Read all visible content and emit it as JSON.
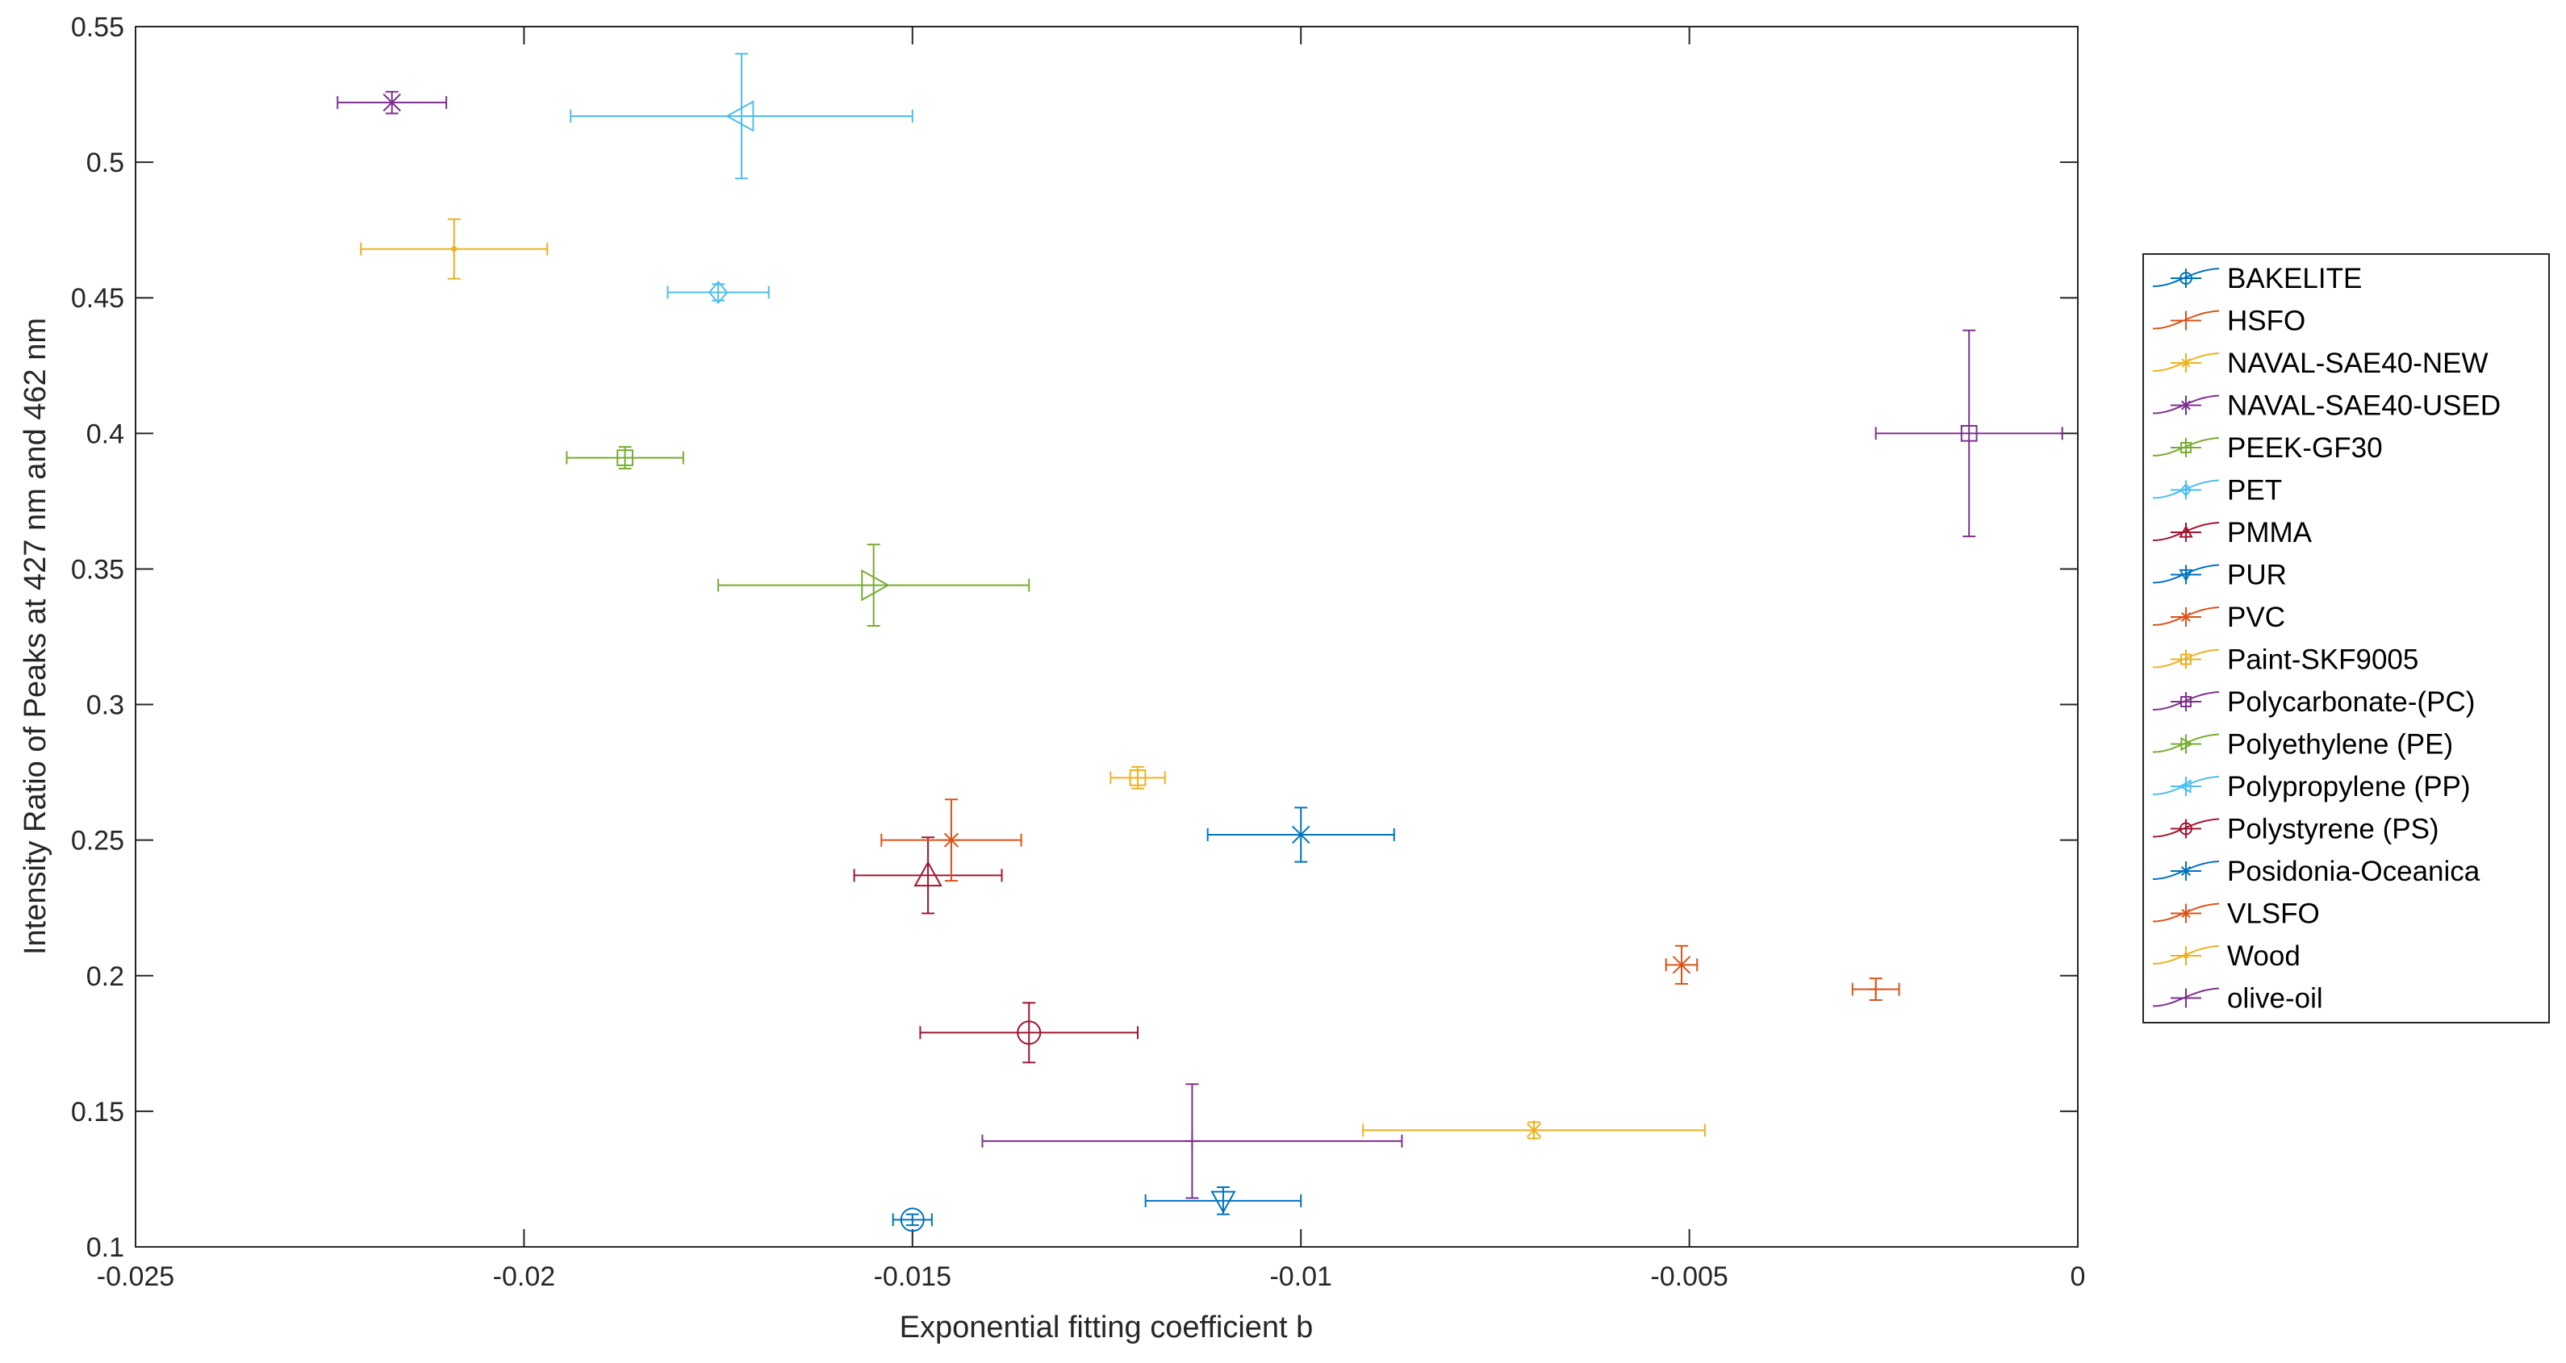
{
  "chart_data": {
    "type": "scatter",
    "title": "",
    "xlabel": "Exponential fitting coefficient b",
    "ylabel": "Intensity Ratio of Peaks at 427 nm and 462 nm",
    "xlim": [
      -0.025,
      0
    ],
    "ylim": [
      0.1,
      0.55
    ],
    "xticks": [
      -0.025,
      -0.02,
      -0.015,
      -0.01,
      -0.005,
      0
    ],
    "xtick_labels": [
      "-0.025",
      "-0.02",
      "-0.015",
      "-0.01",
      "-0.005",
      "0"
    ],
    "yticks": [
      0.1,
      0.15,
      0.2,
      0.25,
      0.3,
      0.35,
      0.4,
      0.45,
      0.5,
      0.55
    ],
    "ytick_labels": [
      "0.1",
      "0.15",
      "0.2",
      "0.25",
      "0.3",
      "0.35",
      "0.4",
      "0.45",
      "0.5",
      "0.55"
    ],
    "grid": false,
    "legend_position": "outside-right",
    "series": [
      {
        "name": "BAKELITE",
        "color": "#0072BD",
        "marker": "circle",
        "x": -0.015,
        "y": 0.11,
        "xerr": 0.00025,
        "yerr": 0.002
      },
      {
        "name": "HSFO",
        "color": "#D95319",
        "marker": "plus",
        "x": -0.0026,
        "y": 0.195,
        "xerr": 0.0003,
        "yerr": 0.004
      },
      {
        "name": "NAVAL-SAE40-NEW",
        "color": "#EDB120",
        "marker": "star",
        "x": -0.007,
        "y": 0.143,
        "xerr": 0.0022,
        "yerr": 0.003
      },
      {
        "name": "NAVAL-SAE40-USED",
        "color": "#7E2F8E",
        "marker": "x",
        "x": -0.0217,
        "y": 0.522,
        "xerr": 0.0007,
        "yerr": 0.004
      },
      {
        "name": "PEEK-GF30",
        "color": "#77AC30",
        "marker": "square",
        "x": -0.0187,
        "y": 0.391,
        "xerr": 0.00075,
        "yerr": 0.004
      },
      {
        "name": "PET",
        "color": "#4DBEEE",
        "marker": "diamond",
        "x": -0.0175,
        "y": 0.452,
        "xerr": 0.00065,
        "yerr": 0.003
      },
      {
        "name": "PMMA",
        "color": "#A2142F",
        "marker": "triangle-up",
        "x": -0.0148,
        "y": 0.237,
        "xerr": 0.00095,
        "yerr": 0.014
      },
      {
        "name": "PUR",
        "color": "#0072BD",
        "marker": "triangle-down",
        "x": -0.011,
        "y": 0.117,
        "xerr": 0.001,
        "yerr": 0.005
      },
      {
        "name": "PVC",
        "color": "#D95319",
        "marker": "x",
        "x": -0.0051,
        "y": 0.204,
        "xerr": 0.0002,
        "yerr": 0.007
      },
      {
        "name": "Paint-SKF9005",
        "color": "#EDB120",
        "marker": "square",
        "x": -0.0121,
        "y": 0.273,
        "xerr": 0.00035,
        "yerr": 0.004
      },
      {
        "name": "Polycarbonate-(PC)",
        "color": "#7E2F8E",
        "marker": "square",
        "x": -0.0014,
        "y": 0.4,
        "xerr": 0.0012,
        "yerr": 0.038
      },
      {
        "name": "Polyethylene (PE)",
        "color": "#77AC30",
        "marker": "triangle-right",
        "x": -0.0155,
        "y": 0.344,
        "xerr": 0.002,
        "yerr": 0.015
      },
      {
        "name": "Polypropylene (PP)",
        "color": "#4DBEEE",
        "marker": "triangle-left",
        "x": -0.0172,
        "y": 0.517,
        "xerr": 0.0022,
        "yerr": 0.023
      },
      {
        "name": "Polystyrene (PS)",
        "color": "#A2142F",
        "marker": "circle",
        "x": -0.0135,
        "y": 0.179,
        "xerr": 0.0014,
        "yerr": 0.011
      },
      {
        "name": "Posidonia-Oceanica",
        "color": "#0072BD",
        "marker": "x",
        "x": -0.01,
        "y": 0.252,
        "xerr": 0.0012,
        "yerr": 0.01
      },
      {
        "name": "VLSFO",
        "color": "#D95319",
        "marker": "star",
        "x": -0.0145,
        "y": 0.25,
        "xerr": 0.0009,
        "yerr": 0.015
      },
      {
        "name": "Wood",
        "color": "#EDB120",
        "marker": "dot",
        "x": -0.0209,
        "y": 0.468,
        "xerr": 0.0012,
        "yerr": 0.011
      },
      {
        "name": "olive-oil",
        "color": "#7E2F8E",
        "marker": "plus",
        "x": -0.0114,
        "y": 0.139,
        "xerr": 0.0027,
        "yerr": 0.021
      }
    ]
  }
}
